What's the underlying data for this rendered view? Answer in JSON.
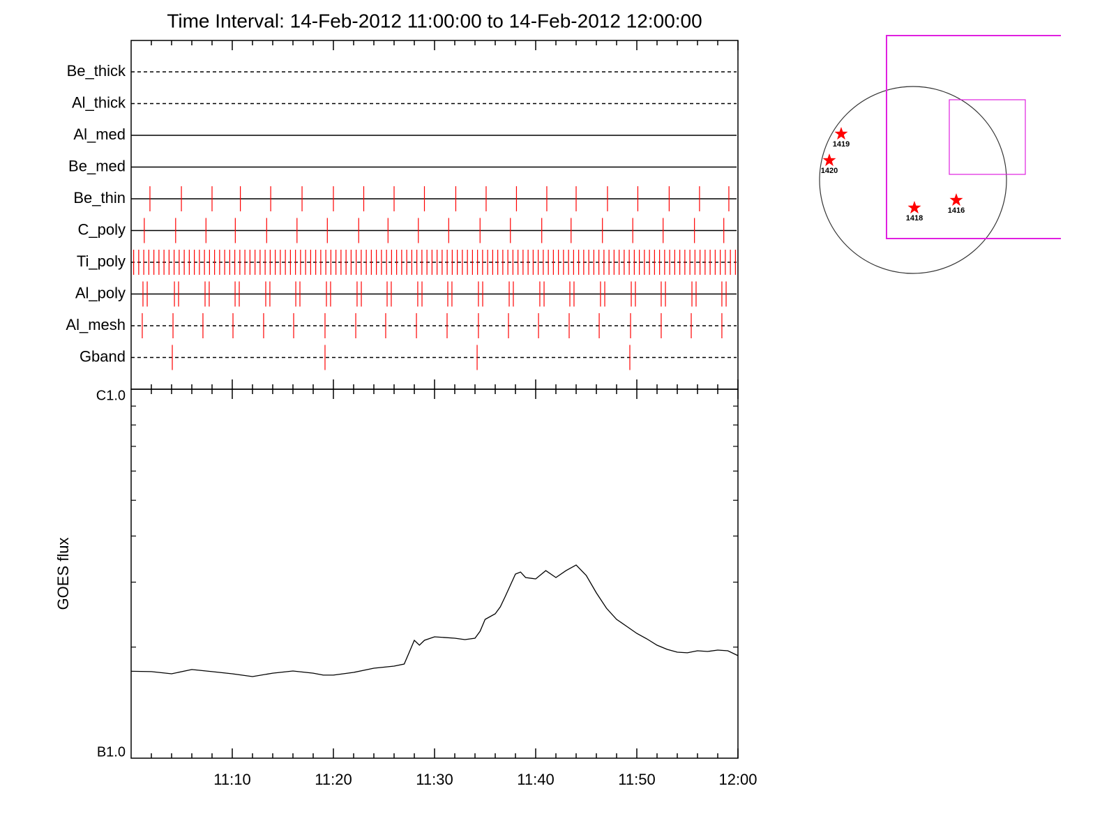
{
  "chart_data": [
    {
      "type": "exposures",
      "title": "Time Interval: 14-Feb-2012 11:00:00 to 14-Feb-2012 12:00:00",
      "xlim": [
        0,
        60
      ],
      "color": "#ff0000",
      "rows": [
        {
          "name": "Be_thick",
          "line": "dashed",
          "times": []
        },
        {
          "name": "Al_thick",
          "line": "dashed",
          "times": []
        },
        {
          "name": "Al_med",
          "line": "solid",
          "times": []
        },
        {
          "name": "Be_med",
          "line": "solid",
          "times": []
        },
        {
          "name": "Be_thin",
          "line": "solid",
          "times": [
            1.86,
            4.97,
            8.0,
            10.8,
            13.8,
            16.9,
            20.0,
            23.0,
            26.0,
            29.0,
            32.1,
            35.1,
            38.1,
            41.1,
            44.0,
            47.1,
            50.1,
            53.2,
            56.2,
            59.1
          ]
        },
        {
          "name": "C_poly",
          "line": "solid",
          "times": [
            1.3,
            4.4,
            7.4,
            10.3,
            13.4,
            16.4,
            19.4,
            22.5,
            25.4,
            28.4,
            31.4,
            34.5,
            37.5,
            40.6,
            43.5,
            46.6,
            49.6,
            52.6,
            55.7,
            58.6
          ]
        },
        {
          "name": "Ti_poly",
          "line": "dashed",
          "times": [
            0.25,
            0.75,
            1.25,
            1.75,
            2.25,
            2.75,
            3.25,
            3.75,
            4.25,
            4.75,
            5.25,
            5.75,
            6.25,
            6.75,
            7.25,
            7.75,
            8.25,
            8.75,
            9.25,
            9.75,
            10.25,
            10.75,
            11.25,
            11.75,
            12.25,
            12.75,
            13.25,
            13.75,
            14.25,
            14.75,
            15.25,
            15.75,
            16.25,
            16.75,
            17.25,
            17.75,
            18.25,
            18.75,
            19.25,
            19.75,
            20.25,
            20.75,
            21.25,
            21.75,
            22.25,
            22.75,
            23.25,
            23.75,
            24.25,
            24.75,
            25.25,
            25.75,
            26.25,
            26.75,
            27.25,
            27.75,
            28.25,
            28.75,
            29.25,
            29.75,
            30.25,
            30.75,
            31.25,
            31.75,
            32.25,
            32.75,
            33.25,
            33.75,
            34.25,
            34.75,
            35.25,
            35.75,
            36.25,
            36.75,
            37.25,
            37.75,
            38.25,
            38.75,
            39.25,
            39.75,
            40.25,
            40.75,
            41.25,
            41.75,
            42.25,
            42.75,
            43.25,
            43.75,
            44.25,
            44.75,
            45.25,
            45.75,
            46.25,
            46.75,
            47.25,
            47.75,
            48.25,
            48.75,
            49.25,
            49.75,
            50.25,
            50.75,
            51.25,
            51.75,
            52.25,
            52.75,
            53.25,
            53.75,
            54.25,
            54.75,
            55.25,
            55.75,
            56.25,
            56.75,
            57.25,
            57.75,
            58.25,
            58.75,
            59.25,
            59.75
          ]
        },
        {
          "name": "Al_poly",
          "line": "solid",
          "times": [
            1.17,
            1.59,
            4.28,
            4.69,
            7.31,
            7.72,
            10.28,
            10.69,
            13.31,
            13.72,
            16.28,
            16.69,
            19.31,
            19.72,
            22.34,
            22.76,
            25.31,
            25.72,
            28.34,
            28.76,
            31.31,
            31.72,
            34.34,
            34.76,
            37.38,
            37.79,
            40.41,
            40.83,
            43.38,
            43.79,
            46.41,
            46.83,
            49.45,
            49.86,
            52.41,
            52.83,
            55.45,
            55.86,
            58.41,
            58.83
          ]
        },
        {
          "name": "Al_mesh",
          "line": "dashed",
          "times": [
            1.1,
            4.14,
            7.1,
            10.07,
            13.1,
            16.07,
            19.17,
            22.21,
            25.17,
            28.21,
            31.24,
            34.34,
            37.31,
            40.28,
            43.31,
            46.28,
            49.38,
            52.41,
            55.38,
            58.41
          ]
        },
        {
          "name": "Gband",
          "line": "dashed",
          "times": [
            4.07,
            19.17,
            34.21,
            49.31
          ]
        }
      ]
    },
    {
      "type": "line",
      "ylabel": "GOES flux",
      "color": "#000000",
      "log_y": true,
      "x": [
        0,
        2,
        4,
        6,
        8,
        10,
        12,
        14,
        16,
        18,
        19,
        20,
        22,
        24,
        26,
        27,
        27.5,
        28,
        28.5,
        29,
        30,
        32,
        33,
        34,
        34.5,
        35,
        36,
        36.5,
        37,
        38,
        38.5,
        39,
        40,
        41,
        42,
        43,
        44,
        45,
        46,
        47,
        48,
        49,
        50,
        51,
        52,
        53,
        54,
        55,
        56,
        57,
        58,
        59,
        60
      ],
      "values": [
        1.72e-07,
        1.716e-07,
        1.693e-07,
        1.739e-07,
        1.716e-07,
        1.693e-07,
        1.664e-07,
        1.7e-07,
        1.723e-07,
        1.7e-07,
        1.679e-07,
        1.679e-07,
        1.708e-07,
        1.753e-07,
        1.776e-07,
        1.8e-07,
        1.938e-07,
        2.087e-07,
        2.024e-07,
        2.087e-07,
        2.133e-07,
        2.114e-07,
        2.096e-07,
        2.114e-07,
        2.208e-07,
        2.378e-07,
        2.462e-07,
        2.572e-07,
        2.746e-07,
        3.155e-07,
        3.196e-07,
        3.087e-07,
        3.061e-07,
        3.224e-07,
        3.087e-07,
        3.224e-07,
        3.338e-07,
        3.128e-07,
        2.805e-07,
        2.549e-07,
        2.378e-07,
        2.277e-07,
        2.179e-07,
        2.105e-07,
        2.024e-07,
        1.972e-07,
        1.938e-07,
        1.93e-07,
        1.955e-07,
        1.946e-07,
        1.963e-07,
        1.955e-07,
        1.896e-07
      ],
      "xlim": [
        0,
        60
      ],
      "xticks": [
        {
          "value": 10,
          "label": "11:10"
        },
        {
          "value": 20,
          "label": "11:20"
        },
        {
          "value": 30,
          "label": "11:30"
        },
        {
          "value": 40,
          "label": "11:40"
        },
        {
          "value": 50,
          "label": "11:50"
        },
        {
          "value": 60,
          "label": "12:00"
        }
      ],
      "xminorticks": [
        2,
        4,
        6,
        8,
        12,
        14,
        16,
        18,
        22,
        24,
        26,
        28,
        32,
        34,
        36,
        38,
        42,
        44,
        46,
        48,
        52,
        54,
        56,
        58
      ],
      "ylim": [
        1e-07,
        1e-06
      ],
      "yticks": [
        {
          "value": 1e-06,
          "label": "C1.0"
        },
        {
          "value": 1e-07,
          "label": "B1.0"
        }
      ],
      "yminorticks": [
        2e-07,
        3e-07,
        4e-07,
        5e-07,
        6e-07,
        7e-07,
        8e-07,
        9e-07
      ]
    }
  ],
  "map": {
    "regions": [
      {
        "label": "1419"
      },
      {
        "label": "1420"
      },
      {
        "label": "1418"
      },
      {
        "label": "1416"
      }
    ]
  }
}
